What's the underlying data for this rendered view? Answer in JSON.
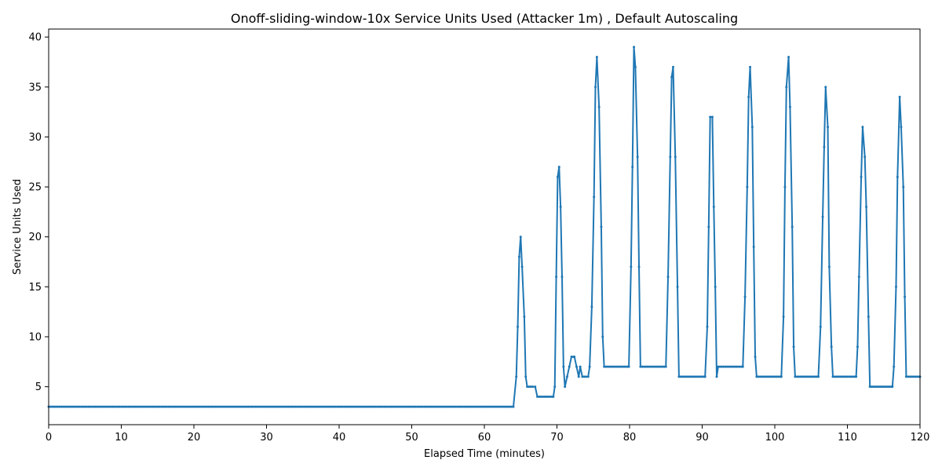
{
  "chart_data": {
    "type": "line",
    "title": "Onoff-sliding-window-10x Service Units Used (Attacker 1m) , Default Autoscaling",
    "xlabel": "Elapsed Time (minutes)",
    "ylabel": "Service Units Used",
    "xlim": [
      0,
      120
    ],
    "ylim": [
      1.2,
      40.8
    ],
    "xticks": [
      0,
      10,
      20,
      30,
      40,
      50,
      60,
      70,
      80,
      90,
      100,
      110,
      120
    ],
    "yticks": [
      5,
      10,
      15,
      20,
      25,
      30,
      35,
      40
    ],
    "grid": false,
    "legend": "none",
    "series": [
      {
        "color": "#1f77b4",
        "marker": "dot",
        "points": [
          [
            0,
            3
          ],
          [
            64,
            3
          ],
          [
            64.4,
            6
          ],
          [
            64.6,
            11
          ],
          [
            64.8,
            18
          ],
          [
            65.0,
            20
          ],
          [
            65.2,
            17
          ],
          [
            65.5,
            12
          ],
          [
            65.7,
            6
          ],
          [
            65.9,
            5
          ],
          [
            67.0,
            5
          ],
          [
            67.3,
            4
          ],
          [
            69.5,
            4
          ],
          [
            69.7,
            5
          ],
          [
            69.9,
            16
          ],
          [
            70.1,
            26
          ],
          [
            70.3,
            27
          ],
          [
            70.5,
            23
          ],
          [
            70.7,
            16
          ],
          [
            70.9,
            7
          ],
          [
            71.1,
            5
          ],
          [
            71.4,
            6
          ],
          [
            71.7,
            7
          ],
          [
            72.0,
            8
          ],
          [
            72.4,
            8
          ],
          [
            72.7,
            7
          ],
          [
            73.0,
            6
          ],
          [
            73.2,
            7
          ],
          [
            73.5,
            6
          ],
          [
            74.3,
            6
          ],
          [
            74.5,
            7
          ],
          [
            74.8,
            13
          ],
          [
            75.1,
            24
          ],
          [
            75.3,
            35
          ],
          [
            75.5,
            38
          ],
          [
            75.8,
            33
          ],
          [
            76.1,
            21
          ],
          [
            76.3,
            10
          ],
          [
            76.5,
            7
          ],
          [
            79.9,
            7
          ],
          [
            80.2,
            17
          ],
          [
            80.4,
            27
          ],
          [
            80.6,
            39
          ],
          [
            80.8,
            37
          ],
          [
            81.1,
            28
          ],
          [
            81.3,
            17
          ],
          [
            81.5,
            7
          ],
          [
            85.0,
            7
          ],
          [
            85.3,
            16
          ],
          [
            85.6,
            28
          ],
          [
            85.8,
            36
          ],
          [
            86.0,
            37
          ],
          [
            86.3,
            28
          ],
          [
            86.6,
            15
          ],
          [
            86.8,
            6
          ],
          [
            90.4,
            6
          ],
          [
            90.7,
            11
          ],
          [
            90.9,
            21
          ],
          [
            91.1,
            32
          ],
          [
            91.4,
            32
          ],
          [
            91.6,
            23
          ],
          [
            91.8,
            15
          ],
          [
            92.0,
            6
          ],
          [
            92.2,
            7
          ],
          [
            95.6,
            7
          ],
          [
            95.9,
            14
          ],
          [
            96.2,
            25
          ],
          [
            96.4,
            34
          ],
          [
            96.6,
            37
          ],
          [
            96.9,
            31
          ],
          [
            97.1,
            19
          ],
          [
            97.3,
            8
          ],
          [
            97.5,
            6
          ],
          [
            100.9,
            6
          ],
          [
            101.2,
            12
          ],
          [
            101.4,
            25
          ],
          [
            101.6,
            35
          ],
          [
            101.9,
            38
          ],
          [
            102.1,
            33
          ],
          [
            102.4,
            21
          ],
          [
            102.6,
            9
          ],
          [
            102.8,
            6
          ],
          [
            106.0,
            6
          ],
          [
            106.3,
            11
          ],
          [
            106.6,
            22
          ],
          [
            106.8,
            29
          ],
          [
            107.0,
            35
          ],
          [
            107.3,
            31
          ],
          [
            107.5,
            17
          ],
          [
            107.8,
            9
          ],
          [
            108.0,
            6
          ],
          [
            111.2,
            6
          ],
          [
            111.4,
            9
          ],
          [
            111.6,
            16
          ],
          [
            111.9,
            26
          ],
          [
            112.1,
            31
          ],
          [
            112.4,
            28
          ],
          [
            112.6,
            23
          ],
          [
            112.9,
            12
          ],
          [
            113.1,
            5
          ],
          [
            116.2,
            5
          ],
          [
            116.4,
            7
          ],
          [
            116.7,
            15
          ],
          [
            116.9,
            26
          ],
          [
            117.2,
            34
          ],
          [
            117.4,
            31
          ],
          [
            117.7,
            25
          ],
          [
            117.9,
            14
          ],
          [
            118.1,
            6
          ],
          [
            120,
            6
          ]
        ]
      }
    ]
  }
}
